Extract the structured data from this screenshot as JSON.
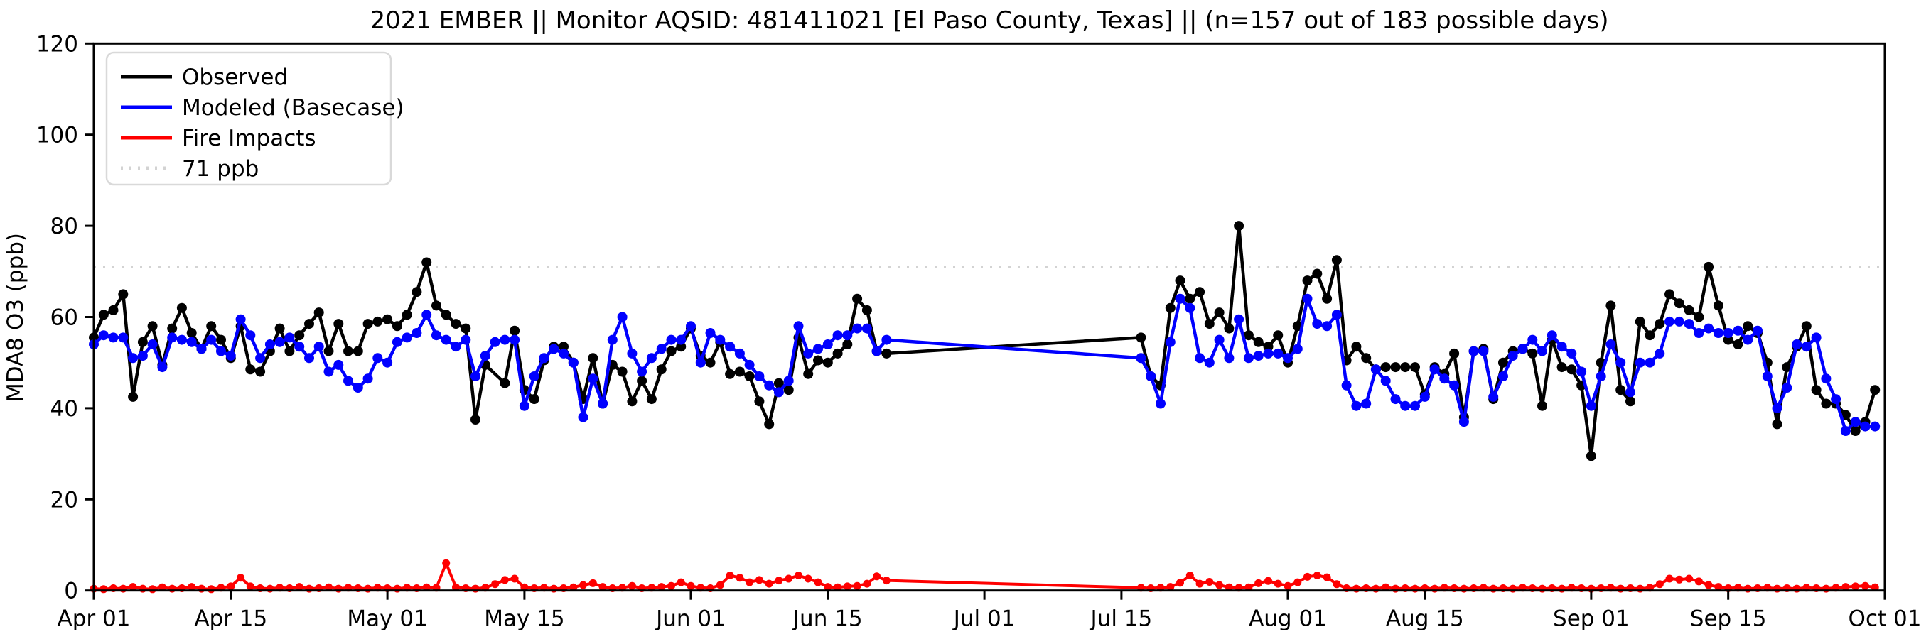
{
  "title": "2021 EMBER || Monitor AQSID: 481411021 [El Paso County, Texas] || (n=157 out of 183 possible days)",
  "axes": {
    "ylabel": "MDA8 O3 (ppb)",
    "ylim": [
      0,
      120
    ],
    "yticks": [
      0,
      20,
      40,
      60,
      80,
      100,
      120
    ],
    "xtick_labels": [
      "Apr 01",
      "Apr 15",
      "May 01",
      "May 15",
      "Jun 01",
      "Jun 15",
      "Jul 01",
      "Jul 15",
      "Aug 01",
      "Aug 15",
      "Sep 01",
      "Sep 15",
      "Oct 01"
    ],
    "xtick_days": [
      0,
      14,
      30,
      44,
      61,
      75,
      91,
      105,
      122,
      136,
      153,
      167,
      183
    ]
  },
  "legend": [
    {
      "label": "Observed",
      "color": "#000000",
      "dash": "solid"
    },
    {
      "label": "Modeled (Basecase)",
      "color": "#0000ff",
      "dash": "solid"
    },
    {
      "label": "Fire Impacts",
      "color": "#ff0000",
      "dash": "solid"
    },
    {
      "label": "71 ppb",
      "color": "#d3d3d3",
      "dash": "dotted"
    }
  ],
  "chart_data": {
    "type": "line",
    "title": "2021 EMBER || Monitor AQSID: 481411021 [El Paso County, Texas] || (n=157 out of 183 possible days)",
    "xlabel": "",
    "ylabel": "MDA8 O3 (ppb)",
    "ylim": [
      0,
      120
    ],
    "x_start": "Apr 01 2021",
    "x_end": "Oct 01 2021",
    "days_total": 183,
    "days_with_data": 157,
    "missing_days": "May 12 (observed only) and Jun 22 - Jul 16 (all series); lines connect straight across the gap",
    "grid": false,
    "legend_position": "upper left",
    "threshold_line": {
      "value": 71,
      "label": "71 ppb",
      "color": "#d3d3d3",
      "style": "dotted"
    },
    "x_unit": "day index from Apr 01",
    "series": [
      {
        "name": "Observed",
        "color": "#000000",
        "marker": "circle",
        "values": [
          55.5,
          60.5,
          61.5,
          65,
          42.5,
          54.5,
          58,
          49.5,
          57.5,
          62,
          56.5,
          53,
          58,
          55,
          51,
          58,
          48.5,
          48,
          52.5,
          57.5,
          52.5,
          56,
          58.5,
          61,
          52.5,
          58.5,
          52.5,
          52.5,
          58.5,
          59,
          59.5,
          58,
          60.5,
          65.5,
          72,
          62.5,
          60.5,
          58.5,
          57.5,
          37.5,
          49.5,
          null,
          45.5,
          57,
          44,
          42,
          50.5,
          53.5,
          53.5,
          50,
          42,
          51,
          41,
          49.5,
          48,
          41.5,
          46,
          42,
          48.5,
          52.5,
          53.5,
          57.5,
          51.5,
          50,
          54.5,
          47.5,
          48,
          47,
          41.5,
          36.5,
          45.5,
          44,
          55.5,
          47.5,
          50.5,
          50,
          52,
          54,
          64,
          61.5,
          52.5,
          52,
          null,
          null,
          null,
          null,
          null,
          null,
          null,
          null,
          null,
          null,
          null,
          null,
          null,
          null,
          null,
          null,
          null,
          null,
          null,
          null,
          null,
          null,
          null,
          null,
          null,
          55.5,
          47,
          45,
          62,
          68,
          64,
          65.5,
          58.5,
          61,
          57.5,
          80,
          56,
          54.5,
          53.5,
          56,
          50,
          58,
          68,
          69.5,
          64,
          72.5,
          50.5,
          53.5,
          51,
          48.5,
          49,
          49,
          49,
          49,
          43,
          49,
          47.5,
          52,
          38,
          52.5,
          53,
          42,
          50,
          52.5,
          53,
          52,
          40.5,
          55,
          49,
          48.5,
          45,
          29.5,
          50,
          62.5,
          44,
          41.5,
          59,
          56,
          58.5,
          65,
          63,
          61.5,
          60,
          71,
          62.5,
          55,
          54,
          58,
          56.5,
          50,
          36.5,
          49,
          53.5,
          58,
          44,
          41,
          41,
          38.5,
          35,
          37,
          44
        ]
      },
      {
        "name": "Modeled (Basecase)",
        "color": "#0000ff",
        "marker": "circle",
        "values": [
          54,
          56,
          55.5,
          55.5,
          51,
          51.5,
          54,
          49,
          55.5,
          55,
          54.5,
          53,
          55,
          52.5,
          51.5,
          59.5,
          56,
          51,
          54,
          54.5,
          55.5,
          53.5,
          51,
          53.5,
          48,
          49.5,
          46,
          44.5,
          46.5,
          51,
          50,
          54.5,
          55.5,
          56.5,
          60.5,
          56,
          55,
          53.5,
          55,
          47,
          51.5,
          54.5,
          55,
          55,
          40.5,
          47,
          51,
          53,
          52,
          50,
          38,
          46.5,
          41,
          55,
          60,
          52,
          48,
          51,
          53,
          55,
          55,
          58,
          50,
          56.5,
          55,
          53.5,
          52,
          49.5,
          47,
          45,
          43.5,
          46,
          58,
          52,
          53,
          54,
          56,
          56,
          57.5,
          57.5,
          52.5,
          55,
          null,
          null,
          null,
          null,
          null,
          null,
          null,
          null,
          null,
          null,
          null,
          null,
          null,
          null,
          null,
          null,
          null,
          null,
          null,
          null,
          null,
          null,
          null,
          null,
          null,
          51,
          47,
          41,
          54.5,
          64,
          62,
          51,
          50,
          55,
          51,
          59.5,
          51,
          51.5,
          52,
          52,
          51,
          53,
          64,
          58.5,
          58,
          60.5,
          45,
          40.5,
          41,
          48.5,
          46,
          42,
          40.5,
          40.5,
          42.5,
          48.5,
          46.5,
          45,
          37,
          52.5,
          52.5,
          42.5,
          47,
          51.5,
          53,
          55,
          52.5,
          56,
          53.5,
          52,
          48,
          40.5,
          47,
          54,
          50,
          43.5,
          50,
          50,
          52,
          59,
          59,
          58.5,
          56.5,
          57.5,
          56.5,
          56.5,
          57,
          55,
          57,
          47,
          40,
          44.5,
          54,
          53.5,
          55.5,
          46.5,
          42,
          35,
          37,
          36,
          36
        ]
      },
      {
        "name": "Fire Impacts",
        "color": "#ff0000",
        "marker": "circle",
        "values": [
          0.4,
          0.3,
          0.5,
          0.4,
          0.8,
          0.4,
          0.3,
          0.7,
          0.4,
          0.5,
          0.8,
          0.4,
          0.3,
          0.6,
          0.9,
          2.8,
          0.9,
          0.5,
          0.4,
          0.6,
          0.5,
          0.8,
          0.4,
          0.5,
          0.7,
          0.4,
          0.6,
          0.5,
          0.4,
          0.6,
          0.5,
          0.4,
          0.6,
          0.5,
          0.7,
          0.6,
          6,
          0.7,
          0.5,
          0.4,
          0.6,
          1.4,
          2.3,
          2.6,
          0.7,
          0.5,
          0.6,
          0.4,
          0.5,
          0.7,
          1.2,
          1.6,
          0.8,
          0.5,
          0.6,
          1,
          0.5,
          0.6,
          0.8,
          1,
          1.8,
          1,
          0.6,
          0.5,
          1.2,
          3.3,
          2.8,
          1.8,
          2.3,
          1.5,
          2.2,
          2.6,
          3.3,
          2.6,
          1.8,
          0.8,
          0.7,
          0.9,
          1,
          1.5,
          3.1,
          2.2,
          null,
          null,
          null,
          null,
          null,
          null,
          null,
          null,
          null,
          null,
          null,
          null,
          null,
          null,
          null,
          null,
          null,
          null,
          null,
          null,
          null,
          null,
          null,
          null,
          null,
          0.6,
          0.5,
          0.6,
          0.8,
          1.7,
          3.3,
          1.5,
          1.9,
          1.2,
          0.7,
          0.6,
          0.7,
          1.6,
          2.1,
          1.5,
          1,
          1.8,
          3,
          3.3,
          2.9,
          1.4,
          0.5,
          0.4,
          0.5,
          0.4,
          0.7,
          0.4,
          0.5,
          0.4,
          0.5,
          0.4,
          0.6,
          0.5,
          0.4,
          0.5,
          0.6,
          0.4,
          0.5,
          0.4,
          0.6,
          0.5,
          0.4,
          0.5,
          0.4,
          0.6,
          0.5,
          0.4,
          0.5,
          0.6,
          0.4,
          0.5,
          0.4,
          0.6,
          1.4,
          2.6,
          2.4,
          2.6,
          2,
          1.2,
          0.8,
          0.5,
          0.6,
          0.4,
          0.5,
          0.6,
          0.4,
          0.5,
          0.4,
          0.6,
          0.5,
          0.4,
          0.6,
          0.8,
          0.9,
          1,
          0.7
        ]
      }
    ]
  }
}
